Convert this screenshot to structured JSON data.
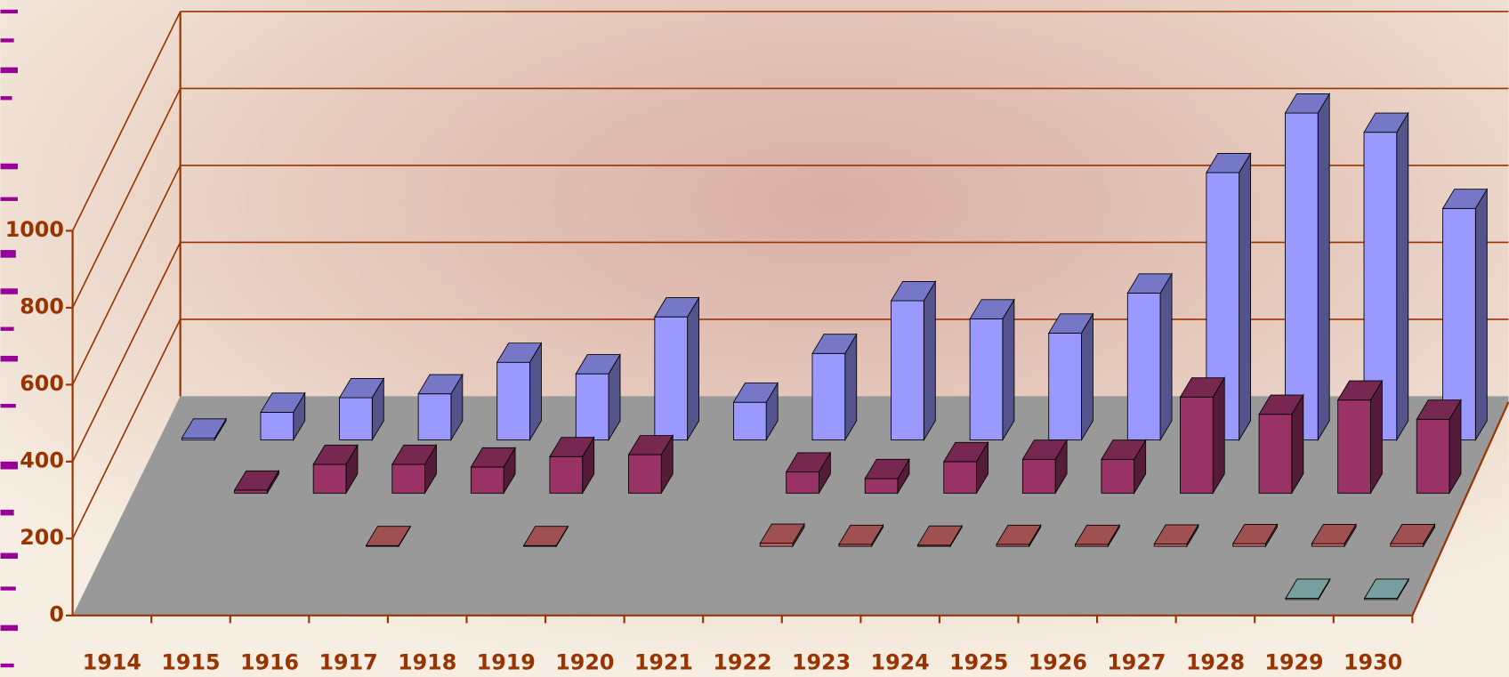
{
  "chart_data": {
    "type": "bar3d",
    "categories": [
      "1914",
      "1915",
      "1916",
      "1917",
      "1918",
      "1919",
      "1920",
      "1921",
      "1922",
      "1923",
      "1924",
      "1925",
      "1926",
      "1927",
      "1928",
      "1929",
      "1930"
    ],
    "series": [
      {
        "color": "#99cccc",
        "values": [
          null,
          null,
          null,
          null,
          null,
          null,
          null,
          null,
          null,
          null,
          null,
          null,
          null,
          null,
          null,
          3,
          3
        ]
      },
      {
        "color": "#cc6666",
        "values": [
          null,
          null,
          null,
          2,
          null,
          2,
          null,
          null,
          8,
          5,
          3,
          5,
          5,
          6,
          7,
          7,
          7
        ]
      },
      {
        "color": "#993366",
        "values": [
          null,
          8,
          75,
          75,
          68,
          95,
          100,
          null,
          55,
          38,
          82,
          88,
          88,
          250,
          205,
          242,
          192
        ]
      },
      {
        "color": "#9999ff",
        "values": [
          5,
          72,
          110,
          120,
          202,
          172,
          320,
          98,
          225,
          362,
          315,
          278,
          382,
          695,
          850,
          800,
          602
        ]
      }
    ],
    "ylim": [
      0,
      1000
    ],
    "yticks": [
      0,
      200,
      400,
      600,
      800,
      1000
    ],
    "grid": true
  }
}
